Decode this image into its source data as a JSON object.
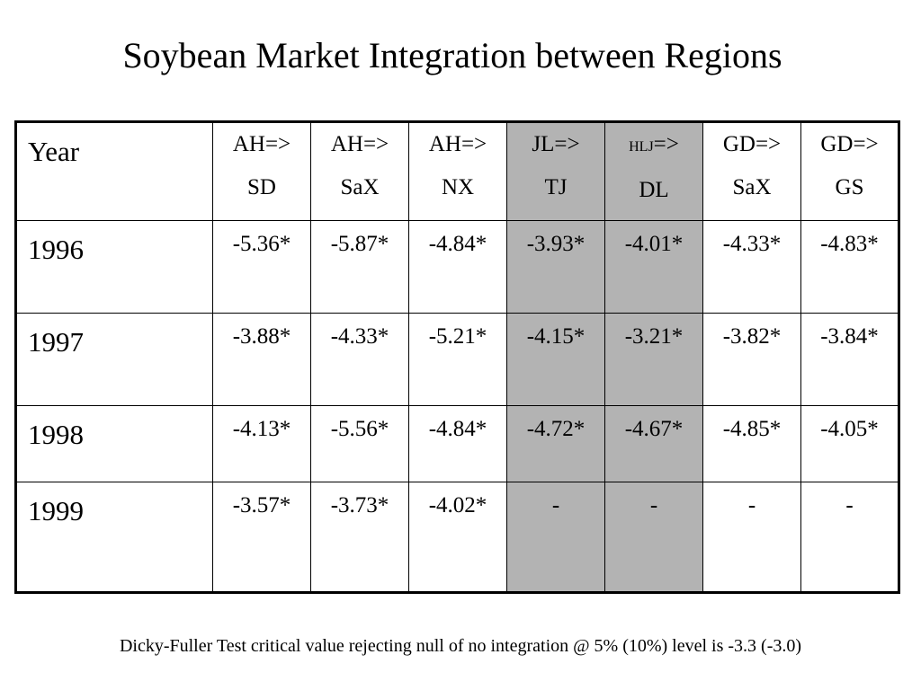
{
  "title": "Soybean Market Integration between Regions",
  "table": {
    "corner": "Year",
    "columns": [
      {
        "top": "AH=>",
        "bottom": "SD"
      },
      {
        "top": "AH=>",
        "bottom": "SaX"
      },
      {
        "top": "AH=>",
        "bottom": "NX"
      },
      {
        "top": "JL=>",
        "bottom": "TJ"
      },
      {
        "top_small": "HLJ",
        "top": "=>",
        "bottom": "DL"
      },
      {
        "top": "GD=>",
        "bottom": "SaX"
      },
      {
        "top": "GD=>",
        "bottom": "GS"
      }
    ],
    "shaded_columns": [
      3,
      4
    ],
    "rows": [
      {
        "year": "1996",
        "cells": [
          "-5.36*",
          "-5.87*",
          "-4.84*",
          "-3.93*",
          "-4.01*",
          "-4.33*",
          "-4.83*"
        ]
      },
      {
        "year": "1997",
        "cells": [
          "-3.88*",
          "-4.33*",
          "-5.21*",
          "-4.15*",
          "-3.21*",
          "-3.82*",
          "-3.84*"
        ]
      },
      {
        "year": "1998",
        "cells": [
          "-4.13*",
          "-5.56*",
          "-4.84*",
          "-4.72*",
          "-4.67*",
          "-4.85*",
          "-4.05*"
        ]
      },
      {
        "year": "1999",
        "cells": [
          "-3.57*",
          "-3.73*",
          "-4.02*",
          "-",
          "-",
          "-",
          "-"
        ]
      }
    ]
  },
  "footnote": "Dicky-Fuller Test critical value rejecting null of no integration @ 5% (10%) level is -3.3 (-3.0)"
}
